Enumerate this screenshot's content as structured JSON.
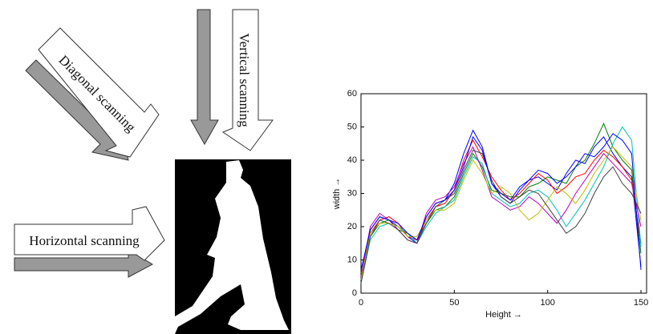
{
  "diagram": {
    "diagonal_label": "Diagonal scanning",
    "vertical_label": "Vertical scanning",
    "horizontal_label": "Horizontal scanning"
  },
  "chart_data": {
    "type": "line",
    "xlabel": "Height →",
    "ylabel": "width →",
    "x": [
      0,
      5,
      10,
      15,
      20,
      25,
      30,
      35,
      40,
      45,
      50,
      55,
      60,
      65,
      70,
      75,
      80,
      85,
      90,
      95,
      100,
      105,
      110,
      115,
      120,
      125,
      130,
      135,
      140,
      145,
      150
    ],
    "series": [
      {
        "color": "#0000ff",
        "values": [
          4,
          19,
          23,
          22,
          20,
          17,
          15,
          23,
          27,
          28,
          33,
          42,
          49,
          44,
          33,
          29,
          27,
          31,
          34,
          35,
          33,
          31,
          36,
          40,
          39,
          44,
          47,
          42,
          38,
          35,
          8
        ]
      },
      {
        "color": "#008000",
        "values": [
          6,
          17,
          21,
          22,
          19,
          18,
          16,
          21,
          25,
          26,
          29,
          36,
          42,
          38,
          31,
          30,
          29,
          29,
          32,
          33,
          35,
          34,
          33,
          38,
          40,
          45,
          51,
          44,
          40,
          37,
          12
        ]
      },
      {
        "color": "#ff0000",
        "values": [
          5,
          18,
          22,
          23,
          21,
          17,
          16,
          22,
          26,
          27,
          31,
          40,
          46,
          41,
          35,
          31,
          28,
          30,
          33,
          36,
          34,
          30,
          32,
          35,
          36,
          40,
          43,
          41,
          38,
          34,
          15
        ]
      },
      {
        "color": "#00bfbf",
        "values": [
          3,
          16,
          20,
          21,
          20,
          18,
          15,
          20,
          24,
          26,
          28,
          35,
          41,
          39,
          30,
          28,
          26,
          27,
          30,
          31,
          29,
          25,
          20,
          24,
          28,
          33,
          38,
          45,
          50,
          46,
          14
        ]
      },
      {
        "color": "#bf00bf",
        "values": [
          5,
          20,
          24,
          22,
          19,
          16,
          15,
          24,
          28,
          29,
          32,
          39,
          44,
          37,
          29,
          27,
          25,
          26,
          29,
          27,
          24,
          21,
          25,
          30,
          34,
          38,
          42,
          39,
          36,
          33,
          20
        ]
      },
      {
        "color": "#bfbf00",
        "values": [
          4,
          18,
          21,
          21,
          20,
          17,
          17,
          22,
          25,
          25,
          27,
          34,
          40,
          36,
          30,
          32,
          30,
          25,
          22,
          24,
          28,
          32,
          30,
          27,
          31,
          36,
          40,
          44,
          41,
          38,
          22
        ]
      },
      {
        "color": "#404040",
        "values": [
          3,
          17,
          22,
          21,
          19,
          16,
          15,
          21,
          26,
          28,
          30,
          37,
          43,
          42,
          34,
          29,
          27,
          29,
          31,
          30,
          26,
          22,
          18,
          20,
          24,
          30,
          35,
          38,
          33,
          30,
          24
        ]
      },
      {
        "color": "#0000ff",
        "values": [
          7,
          19,
          23,
          22,
          21,
          18,
          16,
          23,
          27,
          28,
          31,
          38,
          47,
          43,
          33,
          30,
          28,
          32,
          34,
          37,
          36,
          33,
          35,
          38,
          42,
          41,
          44,
          48,
          46,
          42,
          7
        ]
      }
    ],
    "xlim": [
      0,
      153
    ],
    "ylim": [
      0,
      60
    ],
    "xticks": [
      0,
      50,
      100,
      150
    ],
    "yticks": [
      0,
      10,
      20,
      30,
      40,
      50,
      60
    ]
  }
}
